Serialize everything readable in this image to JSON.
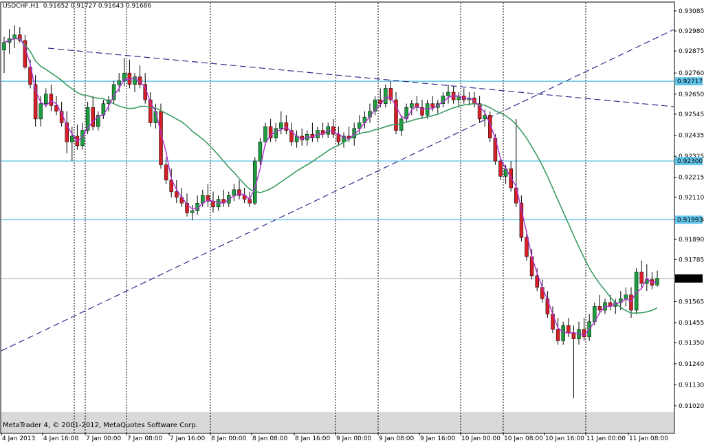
{
  "header": {
    "symbol": "USDCHF,H1",
    "ohlc": "0.91652 0.91727 0.91643 0.91686"
  },
  "footer": {
    "copyright": "MetaTrader 4, © 2001-2012, MetaQuotes Software Corp."
  },
  "chart_data": {
    "type": "candlestick",
    "y_range": [
      0.9096,
      0.9312
    ],
    "y_ticks": [
      "0.93085",
      "0.92980",
      "0.92875",
      "0.92760",
      "0.92650",
      "0.92545",
      "0.92435",
      "0.92325",
      "0.92215",
      "0.92110",
      "0.91993",
      "0.91890",
      "0.91785",
      "0.91686",
      "0.91565",
      "0.91455",
      "0.91350",
      "0.91240",
      "0.91130",
      "0.91020"
    ],
    "x_labels": [
      "4 Jan 2013",
      "4 Jan 16:00",
      "7 Jan 00:00",
      "7 Jan 08:00",
      "7 Jan 16:00",
      "8 Jan 00:00",
      "8 Jan 08:00",
      "8 Jan 16:00",
      "9 Jan 00:00",
      "9 Jan 08:00",
      "9 Jan 16:00",
      "10 Jan 00:00",
      "10 Jan 08:00",
      "10 Jan 16:00",
      "11 Jan 00:00",
      "11 Jan 08:00"
    ],
    "horizontal_levels": [
      {
        "label": "0.92717",
        "price": 0.92717
      },
      {
        "label": "0.92300",
        "price": 0.923
      },
      {
        "label": "0.91993",
        "price": 0.91993
      }
    ],
    "current_price": {
      "label": "0.91686",
      "price": 0.91686
    },
    "colors": {
      "bull": "#1c9e3f",
      "bear": "#d61f26",
      "wick": "#000000",
      "fast_ma": "#b12fd6",
      "slow_ma": "#3b9b62",
      "level": "#63c4ea",
      "trend": "#2e2e8c",
      "grid": "#000000"
    },
    "candles_hourly": [
      [
        0.9288,
        0.9295,
        0.9276,
        0.9292
      ],
      [
        0.9292,
        0.9299,
        0.9286,
        0.9294
      ],
      [
        0.9294,
        0.9301,
        0.9289,
        0.9296
      ],
      [
        0.9296,
        0.93,
        0.9292,
        0.9293
      ],
      [
        0.9293,
        0.9296,
        0.9278,
        0.9279
      ],
      [
        0.9279,
        0.9283,
        0.9268,
        0.927
      ],
      [
        0.927,
        0.9275,
        0.9248,
        0.9252
      ],
      [
        0.9252,
        0.9264,
        0.9248,
        0.926
      ],
      [
        0.926,
        0.9268,
        0.9258,
        0.9265
      ],
      [
        0.9265,
        0.927,
        0.9256,
        0.9259
      ],
      [
        0.9259,
        0.9264,
        0.9254,
        0.9256
      ],
      [
        0.9256,
        0.9261,
        0.9248,
        0.925
      ],
      [
        0.925,
        0.9256,
        0.9234,
        0.924
      ],
      [
        0.924,
        0.9248,
        0.923,
        0.9243
      ],
      [
        0.9243,
        0.9249,
        0.9236,
        0.9238
      ],
      [
        0.9238,
        0.925,
        0.9236,
        0.9246
      ],
      [
        0.9246,
        0.9261,
        0.9244,
        0.9258
      ],
      [
        0.9258,
        0.9264,
        0.9246,
        0.9248
      ],
      [
        0.9248,
        0.9256,
        0.9246,
        0.9254
      ],
      [
        0.9254,
        0.9262,
        0.9252,
        0.926
      ],
      [
        0.926,
        0.9264,
        0.9256,
        0.9262
      ],
      [
        0.9262,
        0.9272,
        0.926,
        0.927
      ],
      [
        0.927,
        0.9276,
        0.9266,
        0.9272
      ],
      [
        0.9272,
        0.9284,
        0.9269,
        0.9276
      ],
      [
        0.9276,
        0.9283,
        0.9268,
        0.927
      ],
      [
        0.927,
        0.9276,
        0.9266,
        0.9274
      ],
      [
        0.9274,
        0.928,
        0.9268,
        0.927
      ],
      [
        0.927,
        0.9276,
        0.926,
        0.9262
      ],
      [
        0.9262,
        0.9266,
        0.9248,
        0.925
      ],
      [
        0.925,
        0.926,
        0.9247,
        0.9256
      ],
      [
        0.9256,
        0.926,
        0.9226,
        0.9228
      ],
      [
        0.9228,
        0.9232,
        0.9218,
        0.922
      ],
      [
        0.922,
        0.9226,
        0.9211,
        0.9214
      ],
      [
        0.9214,
        0.922,
        0.9208,
        0.9211
      ],
      [
        0.9211,
        0.9216,
        0.9206,
        0.9208
      ],
      [
        0.9208,
        0.9213,
        0.9201,
        0.9203
      ],
      [
        0.9203,
        0.9207,
        0.9199,
        0.9204
      ],
      [
        0.9204,
        0.9212,
        0.9202,
        0.9208
      ],
      [
        0.9208,
        0.9215,
        0.9206,
        0.9212
      ],
      [
        0.9212,
        0.9218,
        0.9206,
        0.9209
      ],
      [
        0.9209,
        0.9214,
        0.9203,
        0.9206
      ],
      [
        0.9206,
        0.9212,
        0.9204,
        0.921
      ],
      [
        0.921,
        0.9215,
        0.9206,
        0.9208
      ],
      [
        0.9208,
        0.9214,
        0.9206,
        0.9212
      ],
      [
        0.9212,
        0.9218,
        0.9209,
        0.9215
      ],
      [
        0.9215,
        0.922,
        0.921,
        0.9212
      ],
      [
        0.9212,
        0.9216,
        0.9208,
        0.921
      ],
      [
        0.921,
        0.9214,
        0.9206,
        0.9208
      ],
      [
        0.9208,
        0.9232,
        0.9207,
        0.923
      ],
      [
        0.923,
        0.9242,
        0.9228,
        0.924
      ],
      [
        0.924,
        0.925,
        0.9238,
        0.9248
      ],
      [
        0.9248,
        0.9252,
        0.924,
        0.9242
      ],
      [
        0.9242,
        0.925,
        0.924,
        0.9247
      ],
      [
        0.9247,
        0.9256,
        0.9244,
        0.925
      ],
      [
        0.925,
        0.9254,
        0.9244,
        0.9246
      ],
      [
        0.9246,
        0.925,
        0.9238,
        0.924
      ],
      [
        0.924,
        0.9246,
        0.9237,
        0.9243
      ],
      [
        0.9243,
        0.9247,
        0.9238,
        0.9241
      ],
      [
        0.9241,
        0.9246,
        0.9238,
        0.9244
      ],
      [
        0.9244,
        0.925,
        0.924,
        0.9242
      ],
      [
        0.9242,
        0.9248,
        0.924,
        0.9246
      ],
      [
        0.9246,
        0.925,
        0.9242,
        0.9244
      ],
      [
        0.9244,
        0.925,
        0.9242,
        0.9248
      ],
      [
        0.9248,
        0.9252,
        0.9242,
        0.9244
      ],
      [
        0.9244,
        0.9248,
        0.9238,
        0.924
      ],
      [
        0.924,
        0.9245,
        0.9237,
        0.9243
      ],
      [
        0.9243,
        0.9248,
        0.924,
        0.9242
      ],
      [
        0.9242,
        0.925,
        0.9238,
        0.9247
      ],
      [
        0.9247,
        0.9254,
        0.9244,
        0.925
      ],
      [
        0.925,
        0.9256,
        0.9247,
        0.9253
      ],
      [
        0.9253,
        0.926,
        0.925,
        0.9256
      ],
      [
        0.9256,
        0.9264,
        0.9254,
        0.9262
      ],
      [
        0.9262,
        0.9268,
        0.9258,
        0.926
      ],
      [
        0.926,
        0.927,
        0.9258,
        0.9268
      ],
      [
        0.9268,
        0.9272,
        0.926,
        0.9262
      ],
      [
        0.9262,
        0.9266,
        0.9244,
        0.9246
      ],
      [
        0.9246,
        0.9254,
        0.9243,
        0.9252
      ],
      [
        0.9252,
        0.926,
        0.925,
        0.9258
      ],
      [
        0.9258,
        0.9262,
        0.9254,
        0.926
      ],
      [
        0.926,
        0.9264,
        0.9256,
        0.9258
      ],
      [
        0.9258,
        0.9262,
        0.9252,
        0.9254
      ],
      [
        0.9254,
        0.9262,
        0.9252,
        0.926
      ],
      [
        0.926,
        0.9264,
        0.9256,
        0.9258
      ],
      [
        0.9258,
        0.9262,
        0.9255,
        0.926
      ],
      [
        0.926,
        0.9266,
        0.9258,
        0.9264
      ],
      [
        0.9264,
        0.927,
        0.926,
        0.9266
      ],
      [
        0.9266,
        0.9269,
        0.926,
        0.9262
      ],
      [
        0.9262,
        0.9266,
        0.9258,
        0.9264
      ],
      [
        0.9264,
        0.9268,
        0.926,
        0.9262
      ],
      [
        0.9262,
        0.9266,
        0.9259,
        0.9263
      ],
      [
        0.9263,
        0.9266,
        0.9258,
        0.926
      ],
      [
        0.926,
        0.9264,
        0.925,
        0.9252
      ],
      [
        0.9252,
        0.9257,
        0.9248,
        0.9254
      ],
      [
        0.9254,
        0.9256,
        0.924,
        0.9242
      ],
      [
        0.9242,
        0.9244,
        0.9228,
        0.923
      ],
      [
        0.923,
        0.9232,
        0.922,
        0.9222
      ],
      [
        0.9222,
        0.9228,
        0.9218,
        0.9226
      ],
      [
        0.9226,
        0.923,
        0.9214,
        0.9216
      ],
      [
        0.9216,
        0.9252,
        0.9206,
        0.9208
      ],
      [
        0.9208,
        0.9212,
        0.9188,
        0.919
      ],
      [
        0.919,
        0.9194,
        0.9178,
        0.918
      ],
      [
        0.918,
        0.9184,
        0.9168,
        0.917
      ],
      [
        0.917,
        0.9174,
        0.9162,
        0.9164
      ],
      [
        0.9164,
        0.9168,
        0.9156,
        0.9158
      ],
      [
        0.9158,
        0.9162,
        0.9148,
        0.915
      ],
      [
        0.915,
        0.9154,
        0.914,
        0.9142
      ],
      [
        0.9142,
        0.9148,
        0.9134,
        0.9136
      ],
      [
        0.9136,
        0.9146,
        0.9134,
        0.9144
      ],
      [
        0.9144,
        0.9148,
        0.9138,
        0.914
      ],
      [
        0.914,
        0.9144,
        0.9106,
        0.9137
      ],
      [
        0.9137,
        0.9146,
        0.9134,
        0.9142
      ],
      [
        0.9142,
        0.9148,
        0.9136,
        0.9138
      ],
      [
        0.9138,
        0.915,
        0.9136,
        0.9146
      ],
      [
        0.9146,
        0.9156,
        0.9144,
        0.9154
      ],
      [
        0.9154,
        0.916,
        0.915,
        0.9152
      ],
      [
        0.9152,
        0.9158,
        0.915,
        0.9156
      ],
      [
        0.9156,
        0.916,
        0.9152,
        0.9154
      ],
      [
        0.9154,
        0.9158,
        0.915,
        0.9156
      ],
      [
        0.9156,
        0.9162,
        0.9152,
        0.9158
      ],
      [
        0.9158,
        0.9164,
        0.9154,
        0.916
      ],
      [
        0.916,
        0.9164,
        0.9148,
        0.9152
      ],
      [
        0.9152,
        0.9174,
        0.915,
        0.9172
      ],
      [
        0.9172,
        0.9178,
        0.9164,
        0.9166
      ],
      [
        0.9166,
        0.9176,
        0.9162,
        0.9168
      ],
      [
        0.9168,
        0.9172,
        0.9163,
        0.9165
      ],
      [
        0.91652,
        0.91727,
        0.91643,
        0.91686
      ]
    ]
  }
}
